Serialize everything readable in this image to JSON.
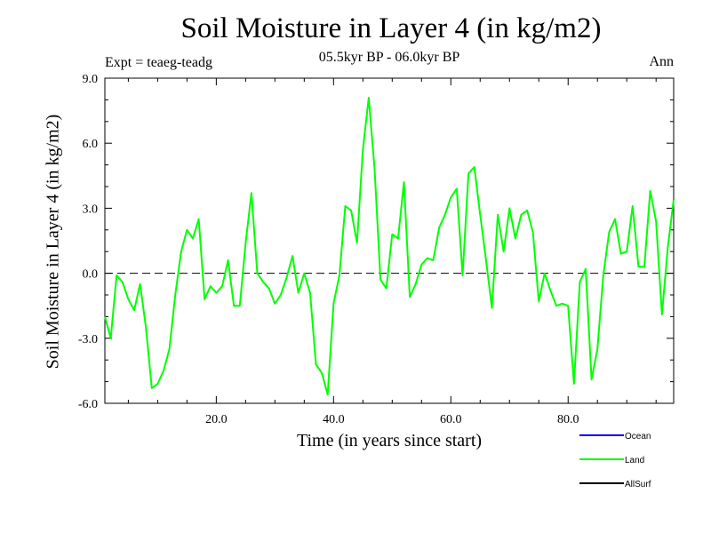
{
  "chart_data": {
    "type": "line",
    "title": "Soil Moisture in Layer 4 (in kg/m2)",
    "subtitle": "05.5kyr BP - 06.0kyr BP",
    "experiment": "Expt = teaeg-teadg",
    "season": "Ann",
    "xlabel": "Time (in years since start)",
    "ylabel": "Soil Moisture in Layer 4 (in kg/m2)",
    "xlim": [
      1,
      98
    ],
    "ylim": [
      -6,
      9
    ],
    "xticks": [
      20,
      40,
      60,
      80
    ],
    "xtick_labels": [
      "20.0",
      "40.0",
      "60.0",
      "80.0"
    ],
    "yticks": [
      -6,
      -3,
      0,
      3,
      6,
      9
    ],
    "ytick_labels": [
      "-6.0",
      "-3.0",
      "0.0",
      "3.0",
      "6.0",
      "9.0"
    ],
    "zero_line": 0,
    "x": [
      1,
      2,
      3,
      4,
      5,
      6,
      7,
      8,
      9,
      10,
      11,
      12,
      13,
      14,
      15,
      16,
      17,
      18,
      19,
      20,
      21,
      22,
      23,
      24,
      25,
      26,
      27,
      28,
      29,
      30,
      31,
      32,
      33,
      34,
      35,
      36,
      37,
      38,
      39,
      40,
      41,
      42,
      43,
      44,
      45,
      46,
      47,
      48,
      49,
      50,
      51,
      52,
      53,
      54,
      55,
      56,
      57,
      58,
      59,
      60,
      61,
      62,
      63,
      64,
      65,
      66,
      67,
      68,
      69,
      70,
      71,
      72,
      73,
      74,
      75,
      76,
      77,
      78,
      79,
      80,
      81,
      82,
      83,
      84,
      85,
      86,
      87,
      88,
      89,
      90,
      91,
      92,
      93,
      94,
      95,
      96,
      97,
      98
    ],
    "series": [
      {
        "name": "Land",
        "color": "#00ff00",
        "values": [
          -2.0,
          -3.0,
          -0.1,
          -0.4,
          -1.2,
          -1.7,
          -0.5,
          -2.5,
          -5.3,
          -5.1,
          -4.5,
          -3.5,
          -1.0,
          1.0,
          2.0,
          1.6,
          2.5,
          -1.2,
          -0.6,
          -0.9,
          -0.6,
          0.6,
          -1.5,
          -1.5,
          1.4,
          3.7,
          0.0,
          -0.4,
          -0.7,
          -1.4,
          -1.0,
          -0.2,
          0.8,
          -0.9,
          0.0,
          -0.9,
          -4.2,
          -4.6,
          -5.6,
          -1.4,
          -0.1,
          3.1,
          2.9,
          1.4,
          5.7,
          8.1,
          4.8,
          -0.3,
          -0.7,
          1.8,
          1.6,
          4.2,
          -1.1,
          -0.5,
          0.4,
          0.7,
          0.6,
          2.1,
          2.7,
          3.5,
          3.9,
          -0.1,
          4.6,
          4.9,
          2.7,
          0.6,
          -1.6,
          2.7,
          1.0,
          3.0,
          1.6,
          2.7,
          2.9,
          1.9,
          -1.3,
          0.0,
          -0.8,
          -1.5,
          -1.4,
          -1.5,
          -5.1,
          -0.4,
          0.2,
          -4.9,
          -3.5,
          -0.1,
          1.9,
          2.5,
          0.9,
          1.0,
          3.1,
          0.3,
          0.3,
          3.8,
          2.4,
          -1.9,
          1.2,
          3.4
        ]
      }
    ],
    "legend": [
      {
        "name": "Ocean",
        "color": "#0000ff"
      },
      {
        "name": "Land",
        "color": "#00ff00"
      },
      {
        "name": "AllSurf",
        "color": "#000000"
      }
    ]
  }
}
